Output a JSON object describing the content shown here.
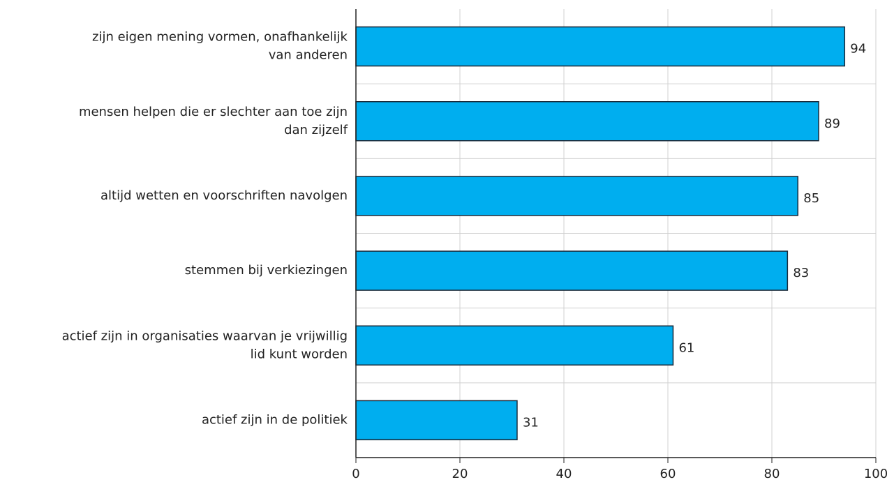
{
  "chart_data": {
    "type": "barh",
    "categories": [
      "zijn eigen mening vormen, onafhankelijk\nvan anderen",
      "mensen helpen die er slechter aan toe zijn\ndan zijzelf",
      "altijd wetten en voorschriften navolgen",
      "stemmen bij verkiezingen",
      "actief zijn in organisaties waarvan je vrijwillig\nlid kunt worden",
      "actief zijn in de politiek"
    ],
    "values": [
      94,
      89,
      85,
      83,
      61,
      31
    ],
    "color": "#00aeef",
    "xlim": [
      0,
      100
    ],
    "xticks": [
      0,
      20,
      40,
      60,
      80,
      100
    ],
    "grid": true
  }
}
